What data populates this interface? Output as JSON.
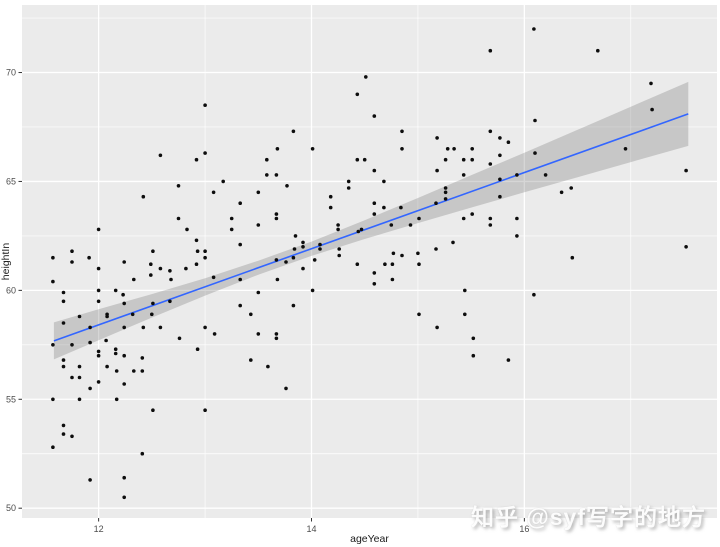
{
  "watermark": {
    "text": "知乎 @syf写字的地方"
  },
  "chart_data": {
    "type": "scatter",
    "title": "",
    "xlabel": "ageYear",
    "ylabel": "heightIn",
    "xlim": [
      11.28,
      17.81
    ],
    "ylim": [
      49.55,
      73.1
    ],
    "x_ticks": [
      12,
      14,
      16
    ],
    "y_ticks": [
      50,
      55,
      60,
      65,
      70
    ],
    "x_minor_gridlines": [
      13,
      15,
      17
    ],
    "y_minor_gridlines": [
      52.5,
      57.5,
      62.5,
      67.5,
      72.5
    ],
    "grid": "on",
    "legend": "none",
    "theme": {
      "panel_bg": "#EBEBEB",
      "grid_color": "#FFFFFF",
      "point_color": "#0d0d0d",
      "line_color": "#3366FF",
      "ribbon_fill": "rgba(102,102,102,0.27)",
      "axis_text_color": "#4D4D4D",
      "axis_title_color": "#1a1a1a",
      "tick_mark_color": "#333333"
    },
    "regression": {
      "method": "lm",
      "intercept": 37.44,
      "slope": 1.748,
      "x_start": 11.58,
      "x_end": 17.54
    },
    "confidence_ribbon": [
      [
        11.58,
        56.83,
        58.53
      ],
      [
        12.0,
        57.71,
        59.13
      ],
      [
        12.5,
        58.75,
        59.83
      ],
      [
        13.0,
        59.76,
        60.56
      ],
      [
        13.5,
        60.72,
        61.36
      ],
      [
        14.0,
        61.58,
        62.24
      ],
      [
        14.5,
        62.36,
        63.22
      ],
      [
        15.0,
        63.09,
        64.24
      ],
      [
        15.5,
        63.8,
        65.28
      ],
      [
        16.0,
        64.5,
        66.32
      ],
      [
        16.5,
        65.19,
        67.37
      ],
      [
        17.0,
        65.89,
        68.43
      ],
      [
        17.54,
        66.63,
        69.57
      ]
    ],
    "points": [
      [
        13.0,
        68.5
      ],
      [
        12.58,
        66.2
      ],
      [
        12.92,
        66.0
      ],
      [
        13.0,
        66.3
      ],
      [
        13.17,
        65.0
      ],
      [
        12.75,
        64.8
      ],
      [
        13.08,
        64.5
      ],
      [
        12.42,
        64.3
      ],
      [
        13.33,
        64.0
      ],
      [
        12.75,
        63.3
      ],
      [
        13.25,
        63.3
      ],
      [
        12.83,
        62.8
      ],
      [
        13.25,
        62.8
      ],
      [
        12.0,
        62.8
      ],
      [
        12.92,
        62.3
      ],
      [
        13.33,
        62.1
      ],
      [
        12.93,
        61.8
      ],
      [
        13.0,
        61.8
      ],
      [
        11.75,
        61.8
      ],
      [
        12.51,
        61.8
      ],
      [
        11.57,
        61.5
      ],
      [
        11.91,
        61.5
      ],
      [
        13.0,
        61.5
      ],
      [
        14.51,
        69.8
      ],
      [
        14.43,
        69.0
      ],
      [
        14.59,
        68.0
      ],
      [
        13.83,
        67.3
      ],
      [
        14.85,
        67.3
      ],
      [
        15.18,
        67.0
      ],
      [
        13.68,
        66.5
      ],
      [
        14.01,
        66.5
      ],
      [
        14.85,
        66.5
      ],
      [
        15.28,
        66.5
      ],
      [
        15.34,
        66.5
      ],
      [
        15.51,
        66.5
      ],
      [
        13.58,
        66.0
      ],
      [
        14.43,
        66.0
      ],
      [
        14.5,
        66.0
      ],
      [
        15.26,
        66.0
      ],
      [
        15.43,
        66.0
      ],
      [
        15.51,
        66.0
      ],
      [
        14.59,
        65.5
      ],
      [
        15.18,
        65.5
      ],
      [
        13.58,
        65.3
      ],
      [
        13.67,
        65.3
      ],
      [
        15.43,
        65.3
      ],
      [
        14.35,
        65.0
      ],
      [
        14.35,
        64.7
      ],
      [
        14.68,
        65.0
      ],
      [
        13.77,
        64.8
      ],
      [
        13.5,
        64.5
      ],
      [
        15.26,
        64.7
      ],
      [
        15.26,
        64.5
      ],
      [
        15.26,
        64.2
      ],
      [
        14.18,
        64.3
      ],
      [
        14.18,
        63.8
      ],
      [
        14.59,
        64.0
      ],
      [
        14.68,
        63.8
      ],
      [
        15.17,
        64.0
      ],
      [
        14.84,
        63.8
      ],
      [
        14.59,
        63.5
      ],
      [
        13.67,
        63.5
      ],
      [
        13.67,
        63.3
      ],
      [
        15.43,
        63.3
      ],
      [
        15.51,
        63.5
      ],
      [
        13.5,
        63.0
      ],
      [
        14.93,
        63.0
      ],
      [
        15.01,
        63.3
      ],
      [
        14.25,
        63.0
      ],
      [
        14.25,
        62.8
      ],
      [
        14.75,
        63.0
      ],
      [
        14.47,
        62.8
      ],
      [
        14.44,
        62.7
      ],
      [
        13.85,
        62.5
      ],
      [
        13.92,
        62.2
      ],
      [
        13.92,
        62.0
      ],
      [
        14.08,
        62.1
      ],
      [
        14.08,
        61.9
      ],
      [
        14.26,
        61.9
      ],
      [
        14.26,
        61.6
      ],
      [
        13.84,
        61.9
      ],
      [
        13.67,
        61.4
      ],
      [
        13.83,
        61.5
      ],
      [
        14.03,
        61.4
      ],
      [
        14.77,
        61.7
      ],
      [
        14.85,
        61.6
      ],
      [
        15.0,
        61.7
      ],
      [
        15.17,
        61.9
      ],
      [
        15.33,
        62.2
      ],
      [
        16.09,
        72.0
      ],
      [
        15.68,
        71.0
      ],
      [
        16.69,
        71.0
      ],
      [
        17.19,
        69.5
      ],
      [
        17.2,
        68.3
      ],
      [
        16.1,
        67.8
      ],
      [
        15.68,
        67.3
      ],
      [
        15.77,
        67.0
      ],
      [
        15.85,
        66.8
      ],
      [
        15.68,
        65.8
      ],
      [
        15.77,
        66.2
      ],
      [
        16.1,
        66.3
      ],
      [
        16.95,
        66.5
      ],
      [
        15.93,
        65.3
      ],
      [
        16.2,
        65.3
      ],
      [
        15.77,
        65.1
      ],
      [
        17.52,
        65.5
      ],
      [
        16.44,
        64.7
      ],
      [
        16.35,
        64.5
      ],
      [
        15.77,
        64.3
      ],
      [
        15.68,
        63.3
      ],
      [
        15.93,
        63.3
      ],
      [
        15.93,
        62.5
      ],
      [
        15.68,
        63.0
      ],
      [
        17.52,
        62.0
      ],
      [
        16.45,
        61.5
      ],
      [
        11.75,
        61.3
      ],
      [
        12.24,
        61.3
      ],
      [
        12.49,
        61.2
      ],
      [
        12.92,
        61.2
      ],
      [
        12.58,
        61.0
      ],
      [
        12.82,
        61.0
      ],
      [
        12.0,
        61.0
      ],
      [
        12.67,
        60.9
      ],
      [
        12.68,
        60.5
      ],
      [
        12.33,
        60.5
      ],
      [
        11.57,
        60.4
      ],
      [
        13.08,
        60.6
      ],
      [
        13.33,
        60.5
      ],
      [
        12.49,
        60.7
      ],
      [
        11.67,
        59.9
      ],
      [
        12.0,
        60.0
      ],
      [
        12.16,
        60.0
      ],
      [
        12.23,
        59.8
      ],
      [
        11.67,
        59.5
      ],
      [
        12.0,
        59.5
      ],
      [
        12.08,
        58.9
      ],
      [
        12.08,
        58.8
      ],
      [
        12.24,
        59.4
      ],
      [
        12.51,
        59.4
      ],
      [
        12.67,
        59.5
      ],
      [
        13.33,
        59.3
      ],
      [
        13.43,
        58.9
      ],
      [
        11.82,
        58.8
      ],
      [
        12.32,
        58.9
      ],
      [
        12.5,
        58.9
      ],
      [
        11.67,
        58.5
      ],
      [
        11.92,
        58.3
      ],
      [
        12.24,
        58.3
      ],
      [
        12.42,
        58.3
      ],
      [
        12.58,
        58.3
      ],
      [
        13.0,
        58.3
      ],
      [
        11.57,
        57.5
      ],
      [
        11.75,
        57.5
      ],
      [
        11.92,
        57.6
      ],
      [
        12.07,
        57.7
      ],
      [
        12.76,
        57.8
      ],
      [
        13.09,
        58.0
      ],
      [
        12.93,
        57.3
      ],
      [
        12.16,
        57.3
      ],
      [
        12.16,
        57.1
      ],
      [
        12.0,
        57.2
      ],
      [
        12.0,
        57.0
      ],
      [
        11.67,
        56.8
      ],
      [
        11.67,
        56.5
      ],
      [
        12.24,
        57.0
      ],
      [
        12.41,
        56.9
      ],
      [
        13.43,
        56.8
      ],
      [
        12.08,
        56.5
      ],
      [
        11.82,
        56.5
      ],
      [
        11.75,
        56.0
      ],
      [
        11.82,
        56.0
      ],
      [
        12.17,
        56.3
      ],
      [
        12.33,
        56.3
      ],
      [
        12.41,
        56.3
      ],
      [
        11.92,
        55.5
      ],
      [
        12.0,
        55.8
      ],
      [
        12.24,
        55.7
      ],
      [
        11.57,
        55.0
      ],
      [
        11.82,
        55.0
      ],
      [
        12.17,
        55.0
      ],
      [
        12.51,
        54.5
      ],
      [
        13.0,
        54.5
      ],
      [
        11.67,
        53.8
      ],
      [
        11.67,
        53.4
      ],
      [
        11.75,
        53.3
      ],
      [
        11.57,
        52.8
      ],
      [
        12.41,
        52.5
      ],
      [
        11.92,
        51.3
      ],
      [
        12.24,
        51.4
      ],
      [
        12.24,
        50.5
      ],
      [
        13.76,
        61.3
      ],
      [
        13.92,
        61.0
      ],
      [
        14.43,
        61.2
      ],
      [
        14.69,
        61.2
      ],
      [
        14.76,
        61.2
      ],
      [
        15.01,
        61.2
      ],
      [
        14.59,
        60.8
      ],
      [
        14.76,
        60.5
      ],
      [
        14.59,
        60.3
      ],
      [
        13.68,
        60.5
      ],
      [
        13.5,
        59.9
      ],
      [
        14.01,
        60.0
      ],
      [
        15.44,
        60.0
      ],
      [
        13.83,
        59.3
      ],
      [
        15.01,
        58.9
      ],
      [
        15.44,
        58.9
      ],
      [
        15.18,
        58.3
      ],
      [
        13.5,
        58.0
      ],
      [
        13.67,
        58.0
      ],
      [
        13.67,
        57.8
      ],
      [
        15.52,
        57.8
      ],
      [
        15.52,
        57.0
      ],
      [
        13.59,
        56.5
      ],
      [
        13.76,
        55.5
      ],
      [
        16.09,
        59.8
      ],
      [
        15.85,
        56.8
      ]
    ]
  }
}
